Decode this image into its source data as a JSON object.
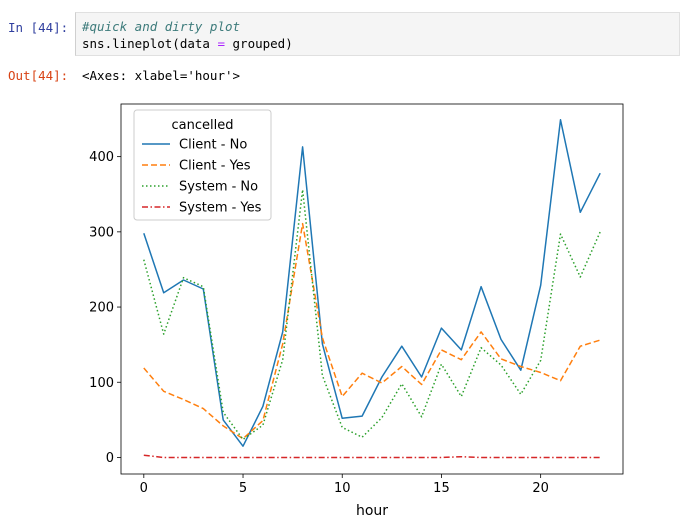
{
  "cell": {
    "in_prompt": "In [44]:",
    "code_comment": "#quick and dirty plot",
    "code_line2_a": "sns.lineplot(data ",
    "code_line2_op": "=",
    "code_line2_b": " grouped)",
    "out_prompt": "Out[44]:",
    "out_text": "<Axes: xlabel='hour'>"
  },
  "chart_data": {
    "type": "line",
    "title": "",
    "xlabel": "hour",
    "ylabel": "",
    "xlim": [
      -1.15,
      24.15
    ],
    "ylim": [
      -22,
      470
    ],
    "xticks": [
      0,
      5,
      10,
      15,
      20
    ],
    "yticks": [
      0,
      100,
      200,
      300,
      400
    ],
    "grid": false,
    "legend": {
      "title": "cancelled",
      "placement": "top-left"
    },
    "x": [
      0,
      1,
      2,
      3,
      4,
      5,
      6,
      7,
      8,
      9,
      10,
      11,
      12,
      13,
      14,
      15,
      16,
      17,
      18,
      19,
      20,
      21,
      22,
      23
    ],
    "series": [
      {
        "name": "Client - No",
        "color": "#1f77b4",
        "dash": "solid",
        "values": [
          298,
          219,
          236,
          224,
          50,
          15,
          68,
          167,
          413,
          151,
          52,
          55,
          107,
          148,
          107,
          172,
          143,
          227,
          157,
          116,
          229,
          449,
          326,
          378
        ]
      },
      {
        "name": "Client - Yes",
        "color": "#ff7f0e",
        "dash": "dashed",
        "values": [
          119,
          88,
          77,
          65,
          42,
          25,
          49,
          151,
          311,
          159,
          81,
          112,
          99,
          121,
          97,
          143,
          130,
          167,
          131,
          121,
          113,
          102,
          148,
          156
        ]
      },
      {
        "name": "System - No",
        "color": "#2ca02c",
        "dash": "dotted",
        "values": [
          263,
          164,
          239,
          227,
          60,
          24,
          43,
          130,
          356,
          109,
          40,
          27,
          53,
          98,
          54,
          124,
          81,
          146,
          123,
          84,
          129,
          297,
          240,
          300
        ]
      },
      {
        "name": "System - Yes",
        "color": "#d62728",
        "dash": "dashdot",
        "values": [
          3,
          0,
          0,
          0,
          0,
          0,
          0,
          0,
          0,
          0,
          0,
          0,
          0,
          0,
          0,
          0,
          1,
          0,
          0,
          0,
          0,
          0,
          0,
          0
        ]
      }
    ]
  }
}
